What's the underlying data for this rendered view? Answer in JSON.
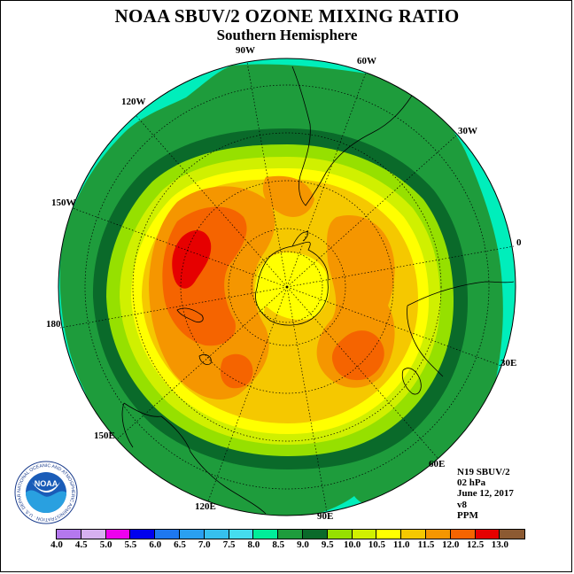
{
  "title": "NOAA SBUV/2 OZONE MIXING RATIO",
  "subtitle": "Southern Hemisphere",
  "longitude_labels": {
    "lon_90w": "90W",
    "lon_60w": "60W",
    "lon_30w": "30W",
    "lon_0": "0",
    "lon_30e": "30E",
    "lon_60e": "60E",
    "lon_90e": "90E",
    "lon_120e": "120E",
    "lon_150e": "150E",
    "lon_180": "180",
    "lon_150w": "150W",
    "lon_120w": "120W"
  },
  "info": {
    "satellite": "N19 SBUV/2",
    "pressure_level": "02 hPa",
    "date": "June 12, 2017",
    "version": "v8",
    "units": "PPM"
  },
  "colorbar": {
    "ticks": [
      "4.0",
      "4.5",
      "5.0",
      "5.5",
      "6.0",
      "6.5",
      "7.0",
      "7.5",
      "8.0",
      "8.5",
      "9.0",
      "9.5",
      "10.0",
      "10.5",
      "11.0",
      "11.5",
      "12.0",
      "12.5",
      "13.0"
    ],
    "colors": [
      "#b478ee",
      "#d7b0f0",
      "#ee00ee",
      "#0000ee",
      "#1e78f0",
      "#2aa0f0",
      "#36c0ee",
      "#45dcee",
      "#00ee99",
      "#1e9c3c",
      "#0a6a2a",
      "#96e000",
      "#d0f000",
      "#ffff00",
      "#f5c800",
      "#f59600",
      "#f56400",
      "#e60000",
      "#8c5a32"
    ]
  },
  "logo": {
    "text": "NOAA",
    "ring_text": "NATIONAL OCEANIC AND ATMOSPHERIC ADMINISTRATION · U.S. DEPARTMENT OF COMMERCE"
  }
}
